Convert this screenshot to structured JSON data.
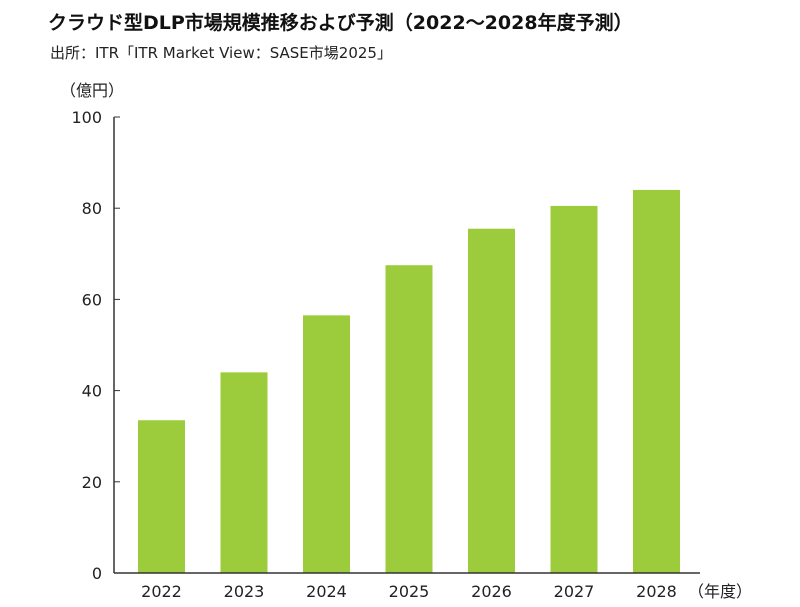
{
  "header": {
    "title": "クラウド型DLP市場規模推移および予測（2022～2028年度予測）",
    "source": "出所：ITR「ITR Market View：SASE市場2025」"
  },
  "chart_data": {
    "type": "bar",
    "categories": [
      "2022",
      "2023",
      "2024",
      "2025",
      "2026",
      "2027",
      "2028"
    ],
    "values": [
      33.5,
      44,
      56.5,
      67.5,
      75.5,
      80.5,
      84
    ],
    "ylim": [
      0,
      100
    ],
    "yticks": [
      0,
      20,
      40,
      60,
      80,
      100
    ],
    "ylabel": "（億円）",
    "xlabel": "（年度）",
    "bar_color": "#9ccb3b",
    "axis_color": "#333333",
    "grid": false
  }
}
